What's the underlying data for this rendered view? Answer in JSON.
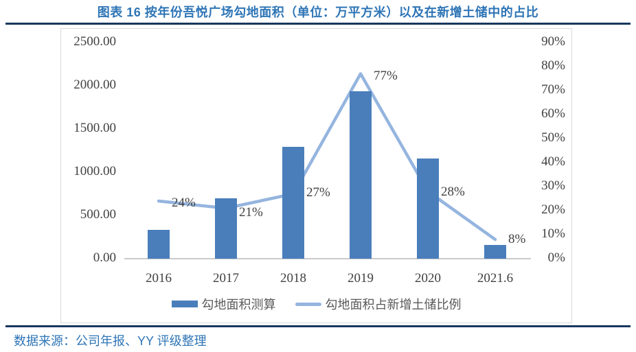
{
  "page": {
    "title": "图表 16 按年份吾悦广场勾地面积（单位：万平方米）以及在新增土储中的占比",
    "source": "数据来源：公司年报、YY 评级整理"
  },
  "colors": {
    "bar": "#4A7EBB",
    "line": "#95B5DF",
    "title_blue": "#2E75B6",
    "rule_navy": "#17375E",
    "axis_text": "#404040",
    "axis_line": "#C9C9C9"
  },
  "chart_data": {
    "type": "bar",
    "subtype": "combo-bar-line",
    "categories": [
      "2016",
      "2017",
      "2018",
      "2019",
      "2020",
      "2021.6"
    ],
    "series": [
      {
        "name": "勾地面积测算",
        "type": "bar",
        "axis": "left",
        "values": [
          330,
          700,
          1290,
          1935,
          1160,
          155
        ]
      },
      {
        "name": "勾地面积占新增土储比例",
        "type": "line",
        "axis": "right",
        "values": [
          24,
          21,
          27,
          77,
          28,
          8
        ],
        "labels": [
          "24%",
          "21%",
          "27%",
          "77%",
          "28%",
          "8%"
        ]
      }
    ],
    "left_axis": {
      "min": 0,
      "max": 2500,
      "step": 500,
      "tick_format": "0.00"
    },
    "right_axis": {
      "min": 0,
      "max": 90,
      "step": 10,
      "tick_format": "0%"
    },
    "grid": false,
    "legend_position": "bottom",
    "label_dx": 19,
    "label_dy": [
      3,
      6,
      -2,
      3,
      1,
      0
    ]
  }
}
